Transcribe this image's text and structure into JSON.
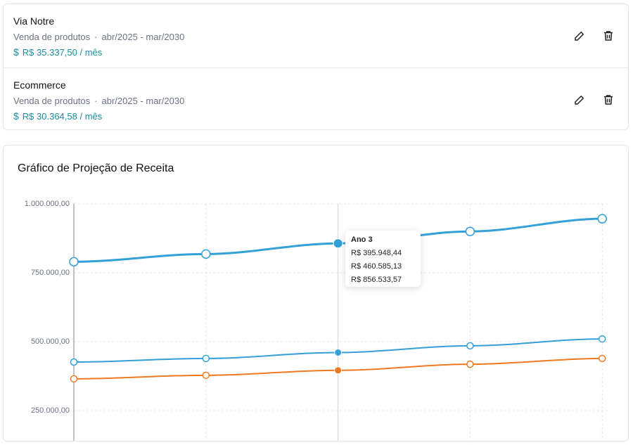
{
  "items": [
    {
      "name": "Via Notre",
      "description": "Venda de produtos",
      "period": "abr/2025 - mar/2030",
      "amount": "R$ 35.337,50 / mês"
    },
    {
      "name": "Ecommerce",
      "description": "Venda de produtos",
      "period": "abr/2025 - mar/2030",
      "amount": "R$ 30.364,58 / mês"
    }
  ],
  "chart_data": {
    "type": "line",
    "title": "Gráfico de Projeção de Receita",
    "categories": [
      null,
      null,
      "Ano 3",
      null,
      null
    ],
    "ylim": [
      0,
      1000000
    ],
    "yticks": [
      {
        "value": 250000,
        "label": "250.000,00"
      },
      {
        "value": 500000,
        "label": "500.000,00"
      },
      {
        "value": 750000,
        "label": "750.000,00"
      },
      {
        "value": 1000000,
        "label": "1.000.000,00"
      }
    ],
    "grid": true,
    "series": [
      {
        "color": "#f07a1f",
        "values": [
          365000,
          378000,
          395948.44,
          418000,
          439000
        ],
        "value_labels": [
          null,
          null,
          "R$ 395.948,44",
          null,
          null
        ]
      },
      {
        "color": "#34a0d8",
        "values": [
          426000,
          439000,
          460585.13,
          485000,
          510000
        ],
        "value_labels": [
          null,
          null,
          "R$ 460.585,13",
          null,
          null
        ]
      },
      {
        "color": "#34a0d8",
        "values": [
          790000,
          818000,
          856533.57,
          900000,
          946000
        ],
        "value_labels": [
          null,
          null,
          "R$ 856.533,57",
          null,
          null
        ],
        "thick": true
      }
    ],
    "highlight_index": 2
  }
}
